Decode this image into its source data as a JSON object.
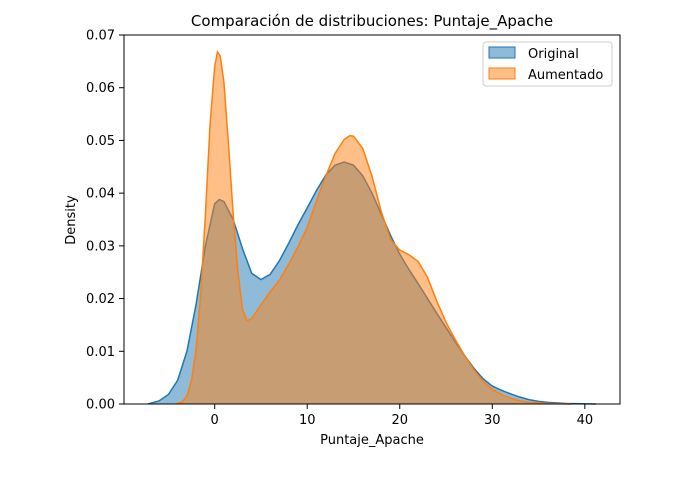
{
  "chart_data": {
    "type": "area",
    "title": "Comparación de distribuciones: Puntaje_Apache",
    "xlabel": "Puntaje_Apache",
    "ylabel": "Density",
    "xlim": [
      -9.8,
      43.8
    ],
    "ylim": [
      0,
      0.07
    ],
    "xticks": [
      0,
      10,
      20,
      30,
      40
    ],
    "yticks": [
      0.0,
      0.01,
      0.02,
      0.03,
      0.04,
      0.05,
      0.06,
      0.07
    ],
    "ytick_labels": [
      "0.00",
      "0.01",
      "0.02",
      "0.03",
      "0.04",
      "0.05",
      "0.06",
      "0.07"
    ],
    "grid": false,
    "legend_position": "top-right",
    "series": [
      {
        "name": "Original",
        "fill_color": "#1f77b4",
        "line_color": "#1f77b4",
        "points": [
          [
            -7.2,
            0.0
          ],
          [
            -6.0,
            0.0006
          ],
          [
            -5.0,
            0.0018
          ],
          [
            -4.0,
            0.0045
          ],
          [
            -3.0,
            0.01
          ],
          [
            -2.0,
            0.019
          ],
          [
            -1.0,
            0.03
          ],
          [
            0.0,
            0.038
          ],
          [
            0.5,
            0.0388
          ],
          [
            1.0,
            0.0384
          ],
          [
            2.0,
            0.035
          ],
          [
            3.0,
            0.0295
          ],
          [
            4.0,
            0.0248
          ],
          [
            5.0,
            0.0236
          ],
          [
            6.0,
            0.0246
          ],
          [
            7.0,
            0.0272
          ],
          [
            8.0,
            0.0305
          ],
          [
            9.0,
            0.034
          ],
          [
            10.0,
            0.0372
          ],
          [
            11.0,
            0.0405
          ],
          [
            12.0,
            0.0434
          ],
          [
            13.0,
            0.0453
          ],
          [
            14.0,
            0.0459
          ],
          [
            15.0,
            0.0453
          ],
          [
            16.0,
            0.0433
          ],
          [
            17.0,
            0.04
          ],
          [
            18.0,
            0.036
          ],
          [
            19.0,
            0.032
          ],
          [
            20.0,
            0.0284
          ],
          [
            21.0,
            0.0255
          ],
          [
            22.0,
            0.0228
          ],
          [
            23.0,
            0.02
          ],
          [
            24.0,
            0.0172
          ],
          [
            25.0,
            0.0145
          ],
          [
            26.0,
            0.0118
          ],
          [
            27.0,
            0.0092
          ],
          [
            28.0,
            0.0068
          ],
          [
            29.0,
            0.0048
          ],
          [
            30.0,
            0.0034
          ],
          [
            31.0,
            0.0026
          ],
          [
            32.0,
            0.0019
          ],
          [
            33.0,
            0.0013
          ],
          [
            34.0,
            0.0008
          ],
          [
            35.0,
            0.0005
          ],
          [
            36.0,
            0.0003
          ],
          [
            38.0,
            0.0001
          ],
          [
            41.2,
            0.0
          ]
        ]
      },
      {
        "name": "Aumentado",
        "fill_color": "#ff7f0e",
        "line_color": "#ff7f0e",
        "points": [
          [
            -4.2,
            0.0
          ],
          [
            -3.5,
            0.0004
          ],
          [
            -3.0,
            0.0015
          ],
          [
            -2.5,
            0.0045
          ],
          [
            -2.0,
            0.0105
          ],
          [
            -1.5,
            0.021
          ],
          [
            -1.0,
            0.036
          ],
          [
            -0.5,
            0.053
          ],
          [
            0.0,
            0.064
          ],
          [
            0.3,
            0.0668
          ],
          [
            0.6,
            0.066
          ],
          [
            1.0,
            0.061
          ],
          [
            1.5,
            0.049
          ],
          [
            2.0,
            0.036
          ],
          [
            2.5,
            0.0252
          ],
          [
            3.0,
            0.018
          ],
          [
            3.5,
            0.0158
          ],
          [
            4.0,
            0.0162
          ],
          [
            5.0,
            0.0188
          ],
          [
            6.0,
            0.0213
          ],
          [
            7.0,
            0.0235
          ],
          [
            8.0,
            0.0265
          ],
          [
            9.0,
            0.0298
          ],
          [
            10.0,
            0.0335
          ],
          [
            11.0,
            0.0385
          ],
          [
            12.0,
            0.0432
          ],
          [
            13.0,
            0.0475
          ],
          [
            14.0,
            0.0502
          ],
          [
            14.6,
            0.0509
          ],
          [
            15.0,
            0.0508
          ],
          [
            16.0,
            0.0485
          ],
          [
            17.0,
            0.0432
          ],
          [
            18.0,
            0.0365
          ],
          [
            19.0,
            0.0312
          ],
          [
            20.0,
            0.0292
          ],
          [
            21.0,
            0.0283
          ],
          [
            22.0,
            0.027
          ],
          [
            23.0,
            0.024
          ],
          [
            24.0,
            0.0195
          ],
          [
            25.0,
            0.0155
          ],
          [
            26.0,
            0.0122
          ],
          [
            27.0,
            0.0092
          ],
          [
            28.0,
            0.0065
          ],
          [
            29.0,
            0.0043
          ],
          [
            30.0,
            0.0028
          ],
          [
            31.0,
            0.0018
          ],
          [
            32.0,
            0.0011
          ],
          [
            33.0,
            0.0006
          ],
          [
            34.0,
            0.0003
          ],
          [
            36.0,
            0.0001
          ],
          [
            38.5,
            0.0
          ]
        ]
      }
    ],
    "colors": {
      "overlap": "#c59f77",
      "axis": "#000000",
      "background": "#ffffff"
    }
  }
}
